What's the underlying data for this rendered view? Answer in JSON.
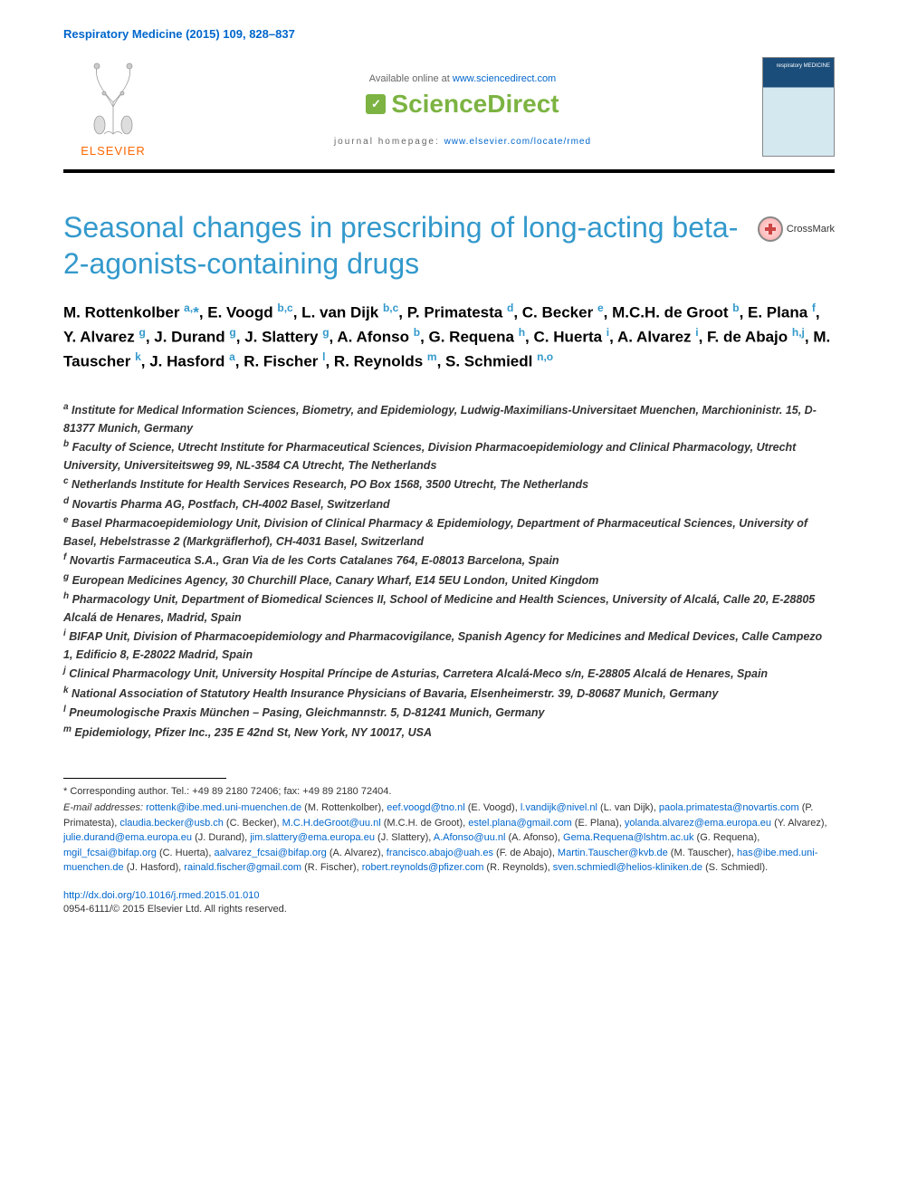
{
  "journal_ref": "Respiratory Medicine (2015) 109, 828–837",
  "header": {
    "available_prefix": "Available online at ",
    "available_url": "www.sciencedirect.com",
    "sciencedirect": "ScienceDirect",
    "homepage_prefix": "journal homepage: ",
    "homepage_url": "www.elsevier.com/locate/rmed",
    "elsevier": "ELSEVIER",
    "cover_title": "respiratory MEDICINE"
  },
  "title": "Seasonal changes in prescribing of long-acting beta-2-agonists-containing drugs",
  "crossmark_label": "CrossMark",
  "authors_html": "M. Rottenkolber <sup>a,</sup><span class='star'>*</span>, E. Voogd <sup>b,c</sup>, L. van Dijk <sup>b,c</sup>, P. Primatesta <sup>d</sup>, C. Becker <sup>e</sup>, M.C.H. de Groot <sup>b</sup>, E. Plana <sup>f</sup>, Y. Alvarez <sup>g</sup>, J. Durand <sup>g</sup>, J. Slattery <sup>g</sup>, A. Afonso <sup>b</sup>, G. Requena <sup>h</sup>, C. Huerta <sup>i</sup>, A. Alvarez <sup>i</sup>, F. de Abajo <sup>h,j</sup>, M. Tauscher <sup>k</sup>, J. Hasford <sup>a</sup>, R. Fischer <sup>l</sup>, R. Reynolds <sup>m</sup>, S. Schmiedl <sup>n,o</sup>",
  "affiliations": [
    {
      "sup": "a",
      "text": "Institute for Medical Information Sciences, Biometry, and Epidemiology, Ludwig-Maximilians-Universitaet Muenchen, Marchioninistr. 15, D-81377 Munich, Germany"
    },
    {
      "sup": "b",
      "text": "Faculty of Science, Utrecht Institute for Pharmaceutical Sciences, Division Pharmacoepidemiology and Clinical Pharmacology, Utrecht University, Universiteitsweg 99, NL-3584 CA Utrecht, The Netherlands"
    },
    {
      "sup": "c",
      "text": "Netherlands Institute for Health Services Research, PO Box 1568, 3500 Utrecht, The Netherlands"
    },
    {
      "sup": "d",
      "text": "Novartis Pharma AG, Postfach, CH-4002 Basel, Switzerland"
    },
    {
      "sup": "e",
      "text": "Basel Pharmacoepidemiology Unit, Division of Clinical Pharmacy & Epidemiology, Department of Pharmaceutical Sciences, University of Basel, Hebelstrasse 2 (Markgräflerhof), CH-4031 Basel, Switzerland"
    },
    {
      "sup": "f",
      "text": "Novartis Farmaceutica S.A., Gran Via de les Corts Catalanes 764, E-08013 Barcelona, Spain"
    },
    {
      "sup": "g",
      "text": "European Medicines Agency, 30 Churchill Place, Canary Wharf, E14 5EU London, United Kingdom"
    },
    {
      "sup": "h",
      "text": "Pharmacology Unit, Department of Biomedical Sciences II, School of Medicine and Health Sciences, University of Alcalá, Calle 20, E-28805 Alcalá de Henares, Madrid, Spain"
    },
    {
      "sup": "i",
      "text": "BIFAP Unit, Division of Pharmacoepidemiology and Pharmacovigilance, Spanish Agency for Medicines and Medical Devices, Calle Campezo 1, Edificio 8, E-28022 Madrid, Spain"
    },
    {
      "sup": "j",
      "text": "Clinical Pharmacology Unit, University Hospital Príncipe de Asturias, Carretera Alcalá-Meco s/n, E-28805 Alcalá de Henares, Spain"
    },
    {
      "sup": "k",
      "text": "National Association of Statutory Health Insurance Physicians of Bavaria, Elsenheimerstr. 39, D-80687 Munich, Germany"
    },
    {
      "sup": "l",
      "text": "Pneumologische Praxis München – Pasing, Gleichmannstr. 5, D-81241 Munich, Germany"
    },
    {
      "sup": "m",
      "text": "Epidemiology, Pfizer Inc., 235 E 42nd St, New York, NY 10017, USA"
    }
  ],
  "corresponding": "* Corresponding author. Tel.: +49 89 2180 72406; fax: +49 89 2180 72404.",
  "emails_label": "E-mail addresses:",
  "emails": [
    {
      "addr": "rottenk@ibe.med.uni-muenchen.de",
      "name": "(M. Rottenkolber)"
    },
    {
      "addr": "eef.voogd@tno.nl",
      "name": "(E. Voogd)"
    },
    {
      "addr": "l.vandijk@nivel.nl",
      "name": "(L. van Dijk)"
    },
    {
      "addr": "paola.primatesta@novartis.com",
      "name": "(P. Primatesta)"
    },
    {
      "addr": "claudia.becker@usb.ch",
      "name": "(C. Becker)"
    },
    {
      "addr": "M.C.H.deGroot@uu.nl",
      "name": "(M.C.H. de Groot)"
    },
    {
      "addr": "estel.plana@gmail.com",
      "name": "(E. Plana)"
    },
    {
      "addr": "yolanda.alvarez@ema.europa.eu",
      "name": "(Y. Alvarez)"
    },
    {
      "addr": "julie.durand@ema.europa.eu",
      "name": "(J. Durand)"
    },
    {
      "addr": "jim.slattery@ema.europa.eu",
      "name": "(J. Slattery)"
    },
    {
      "addr": "A.Afonso@uu.nl",
      "name": "(A. Afonso)"
    },
    {
      "addr": "Gema.Requena@lshtm.ac.uk",
      "name": "(G. Requena)"
    },
    {
      "addr": "mgil_fcsai@bifap.org",
      "name": "(C. Huerta)"
    },
    {
      "addr": "aalvarez_fcsai@bifap.org",
      "name": "(A. Alvarez)"
    },
    {
      "addr": "francisco.abajo@uah.es",
      "name": "(F. de Abajo)"
    },
    {
      "addr": "Martin.Tauscher@kvb.de",
      "name": "(M. Tauscher)"
    },
    {
      "addr": "has@ibe.med.uni-muenchen.de",
      "name": "(J. Hasford)"
    },
    {
      "addr": "rainald.fischer@gmail.com",
      "name": "(R. Fischer)"
    },
    {
      "addr": "robert.reynolds@pfizer.com",
      "name": "(R. Reynolds)"
    },
    {
      "addr": "sven.schmiedl@helios-kliniken.de",
      "name": "(S. Schmiedl)"
    }
  ],
  "doi": "http://dx.doi.org/10.1016/j.rmed.2015.01.010",
  "copyright": "0954-6111/© 2015 Elsevier Ltd. All rights reserved.",
  "colors": {
    "link": "#0066cc",
    "title": "#3399cc",
    "elsevier_orange": "#ff6600",
    "sciencedirect_green": "#7cb342"
  }
}
